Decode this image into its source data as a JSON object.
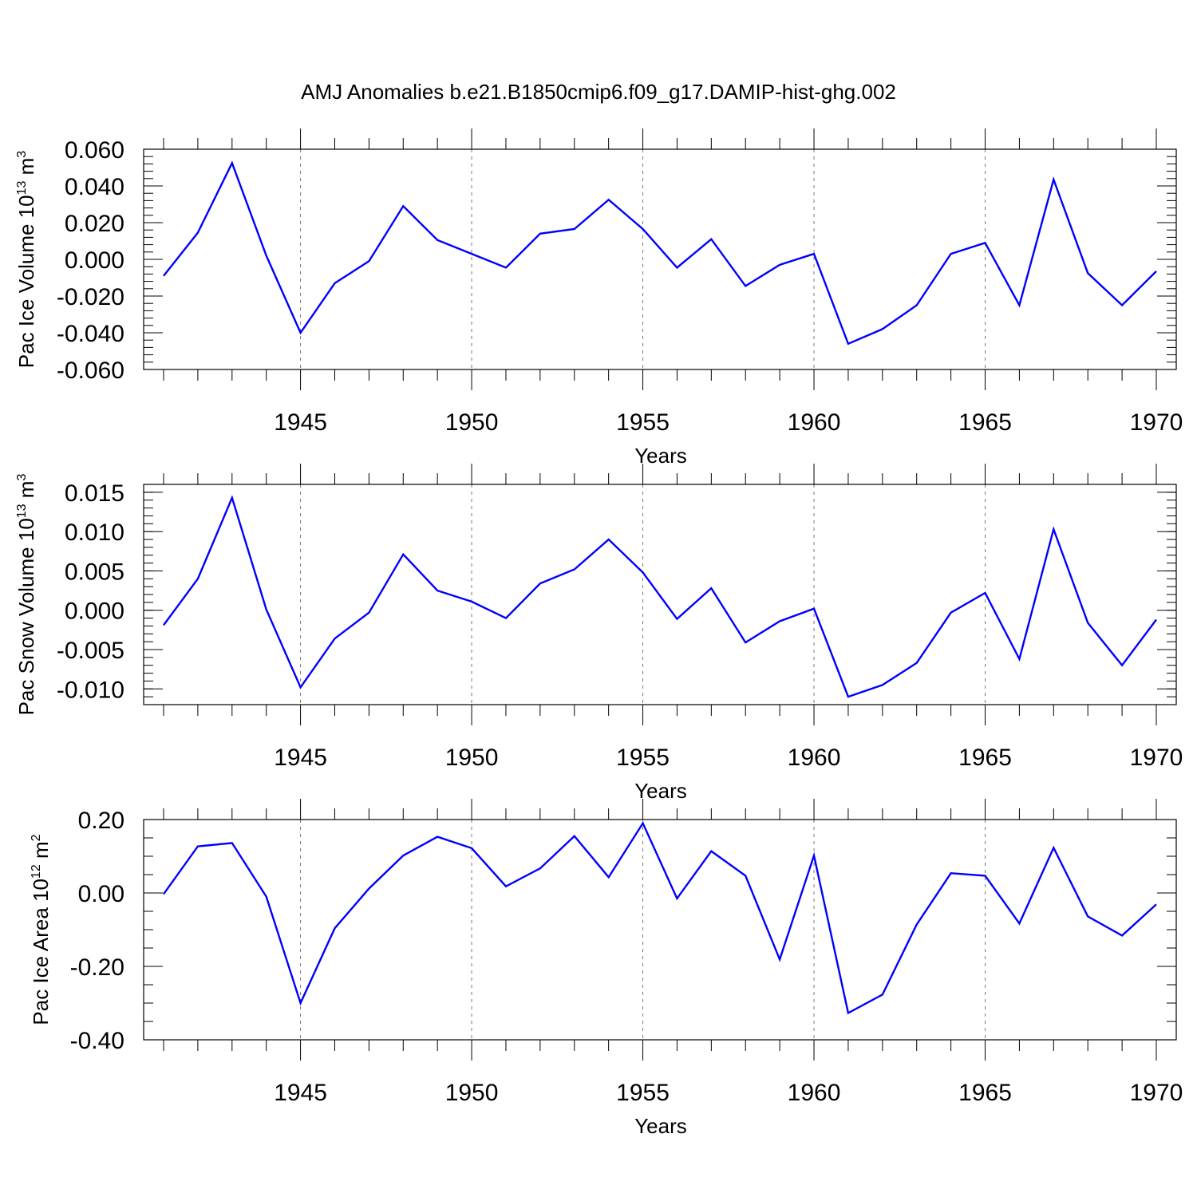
{
  "title": "AMJ Anomalies b.e21.B1850cmip6.f09_g17.DAMIP-hist-ghg.002",
  "colors": {
    "line": "#0000ff",
    "axis": "#000000",
    "grid": "#777777",
    "background": "#ffffff"
  },
  "chart_data": [
    {
      "type": "line",
      "ylabel": {
        "base": "Pac Ice Volume 10",
        "exp": "13",
        "unit": "m",
        "unit_exp": "3"
      },
      "xlabel": "Years",
      "xlim": [
        1941,
        1970
      ],
      "ylim": [
        -0.06,
        0.06
      ],
      "yticks": [
        -0.06,
        -0.04,
        -0.02,
        0.0,
        0.02,
        0.04,
        0.06
      ],
      "ytick_labels": [
        "-0.060",
        "-0.040",
        "-0.020",
        "0.000",
        "0.020",
        "0.040",
        "0.060"
      ],
      "yminor_step": 0.004,
      "xticks": [
        1945,
        1950,
        1955,
        1960,
        1965,
        1970
      ],
      "xtick_labels": [
        "1945",
        "1950",
        "1955",
        "1960",
        "1965",
        "1970"
      ],
      "grid": "vertical dashed at major x ticks",
      "x": [
        1941,
        1942,
        1943,
        1944,
        1945,
        1946,
        1947,
        1948,
        1949,
        1950,
        1951,
        1952,
        1953,
        1954,
        1955,
        1956,
        1957,
        1958,
        1959,
        1960,
        1961,
        1962,
        1963,
        1964,
        1965,
        1966,
        1967,
        1968,
        1969,
        1970
      ],
      "series": [
        {
          "name": "Pac Ice Volume",
          "values": [
            -0.009,
            0.0145,
            0.0525,
            0.002,
            -0.04,
            -0.013,
            -0.001,
            0.029,
            0.0105,
            0.003,
            -0.0045,
            0.014,
            0.0165,
            0.0325,
            0.0165,
            -0.0045,
            0.011,
            -0.0145,
            -0.003,
            0.003,
            -0.046,
            -0.038,
            -0.025,
            0.003,
            0.009,
            -0.025,
            0.0435,
            -0.0075,
            -0.025,
            -0.0065
          ]
        }
      ]
    },
    {
      "type": "line",
      "ylabel": {
        "base": "Pac Snow Volume 10",
        "exp": "13",
        "unit": "m",
        "unit_exp": "3"
      },
      "xlabel": "Years",
      "xlim": [
        1941,
        1970
      ],
      "ylim": [
        -0.012,
        0.016
      ],
      "yticks": [
        -0.01,
        -0.005,
        0.0,
        0.005,
        0.01,
        0.015
      ],
      "ytick_labels": [
        "-0.010",
        "-0.005",
        "0.000",
        "0.005",
        "0.010",
        "0.015"
      ],
      "yminor_step": 0.001,
      "xticks": [
        1945,
        1950,
        1955,
        1960,
        1965,
        1970
      ],
      "xtick_labels": [
        "1945",
        "1950",
        "1955",
        "1960",
        "1965",
        "1970"
      ],
      "grid": "vertical dashed at major x ticks",
      "x": [
        1941,
        1942,
        1943,
        1944,
        1945,
        1946,
        1947,
        1948,
        1949,
        1950,
        1951,
        1952,
        1953,
        1954,
        1955,
        1956,
        1957,
        1958,
        1959,
        1960,
        1961,
        1962,
        1963,
        1964,
        1965,
        1966,
        1967,
        1968,
        1969,
        1970
      ],
      "series": [
        {
          "name": "Pac Snow Volume",
          "values": [
            -0.0019,
            0.004,
            0.0143,
            0.0001,
            -0.0098,
            -0.0036,
            -0.0003,
            0.0071,
            0.0025,
            0.0011,
            -0.001,
            0.0034,
            0.0052,
            0.009,
            0.0048,
            -0.0011,
            0.0028,
            -0.0041,
            -0.0014,
            0.0002,
            -0.011,
            -0.0095,
            -0.0067,
            -0.0003,
            0.0022,
            -0.0062,
            0.0103,
            -0.0016,
            -0.007,
            -0.0012
          ]
        }
      ]
    },
    {
      "type": "line",
      "ylabel": {
        "base": "Pac Ice Area 10",
        "exp": "12",
        "unit": "m",
        "unit_exp": "2"
      },
      "xlabel": "Years",
      "xlim": [
        1941,
        1970
      ],
      "ylim": [
        -0.4,
        0.2
      ],
      "yticks": [
        -0.4,
        -0.2,
        0.0,
        0.2
      ],
      "ytick_labels": [
        "-0.40",
        "-0.20",
        "0.00",
        "0.20"
      ],
      "yminor_step": 0.05,
      "xticks": [
        1945,
        1950,
        1955,
        1960,
        1965,
        1970
      ],
      "xtick_labels": [
        "1945",
        "1950",
        "1955",
        "1960",
        "1965",
        "1970"
      ],
      "grid": "vertical dashed at major x ticks",
      "x": [
        1941,
        1942,
        1943,
        1944,
        1945,
        1946,
        1947,
        1948,
        1949,
        1950,
        1951,
        1952,
        1953,
        1954,
        1955,
        1956,
        1957,
        1958,
        1959,
        1960,
        1961,
        1962,
        1963,
        1964,
        1965,
        1966,
        1967,
        1968,
        1969,
        1970
      ],
      "series": [
        {
          "name": "Pac Ice Area",
          "values": [
            -0.003,
            0.127,
            0.136,
            -0.01,
            -0.3,
            -0.096,
            0.012,
            0.102,
            0.153,
            0.122,
            0.018,
            0.067,
            0.155,
            0.043,
            0.19,
            -0.015,
            0.114,
            0.047,
            -0.181,
            0.102,
            -0.327,
            -0.277,
            -0.086,
            0.054,
            0.047,
            -0.083,
            0.123,
            -0.064,
            -0.116,
            -0.031
          ]
        }
      ]
    }
  ]
}
